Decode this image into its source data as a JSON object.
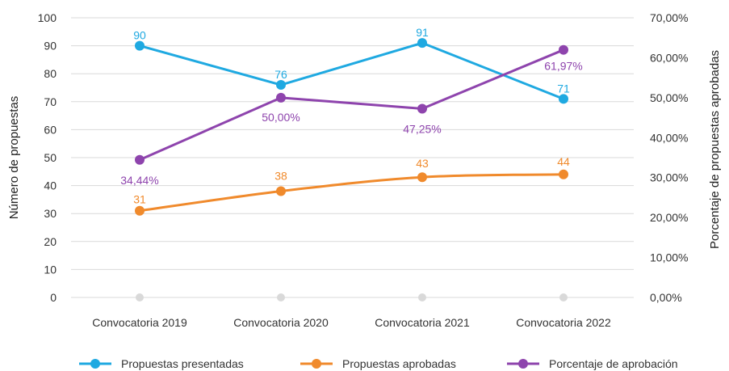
{
  "chart_data": {
    "type": "line",
    "categories": [
      "Convocatoria 2019",
      "Convocatoria 2020",
      "Convocatoria 2021",
      "Convocatoria 2022"
    ],
    "ylabel": "Número de propuestas",
    "y2label": "Porcentaje de propuestas aprobadas",
    "ylim": [
      0,
      100
    ],
    "y2lim": [
      0,
      70
    ],
    "yticks": [
      "0",
      "10",
      "20",
      "30",
      "40",
      "50",
      "60",
      "70",
      "80",
      "90",
      "100"
    ],
    "y2ticks": [
      "0,00%",
      "10,00%",
      "20,00%",
      "30,00%",
      "40,00%",
      "50,00%",
      "60,00%",
      "70,00%"
    ],
    "grid": "horizontal",
    "legend_position": "bottom",
    "series": [
      {
        "name": "Propuestas presentadas",
        "axis": "left",
        "color": "#1fa9e1",
        "smooth": false,
        "values": [
          90,
          76,
          91,
          71
        ],
        "labels": [
          "90",
          "76",
          "91",
          "71"
        ]
      },
      {
        "name": "Propuestas aprobadas",
        "axis": "left",
        "color": "#f08a2c",
        "smooth": true,
        "values": [
          31,
          38,
          43,
          44
        ],
        "labels": [
          "31",
          "38",
          "43",
          "44"
        ]
      },
      {
        "name": "Porcentaje de aprobación",
        "axis": "right",
        "color": "#8e44ad",
        "smooth": false,
        "values": [
          34.44,
          50.0,
          47.25,
          61.97
        ],
        "labels": [
          "34,44%",
          "50,00%",
          "47,25%",
          "61,97%"
        ]
      }
    ],
    "zero_marker_color": "#d9d9d9"
  }
}
